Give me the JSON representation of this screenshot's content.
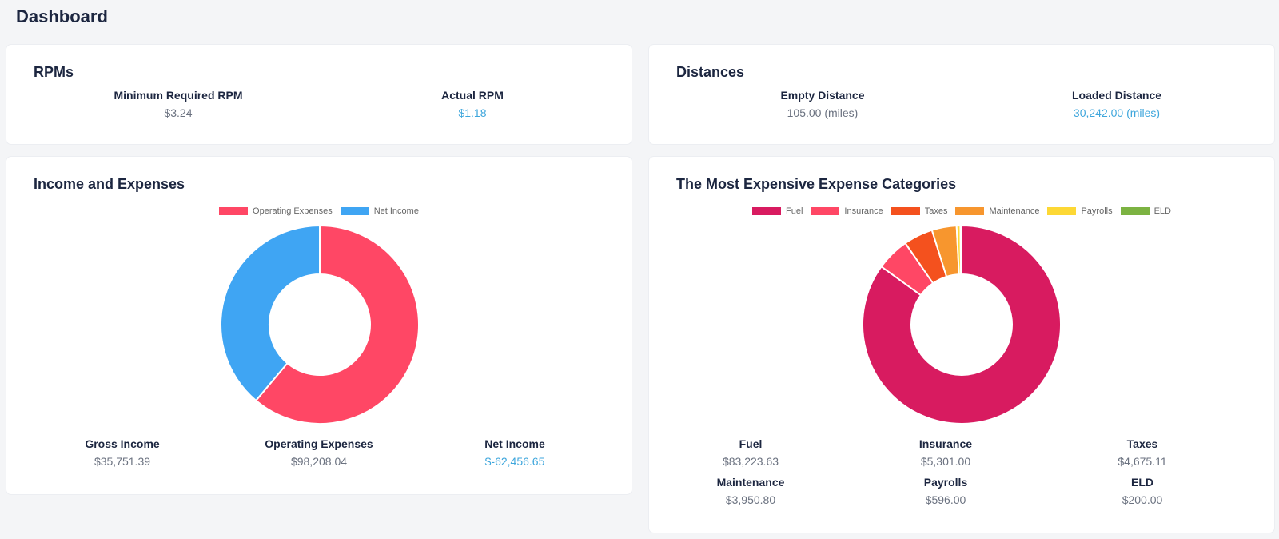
{
  "page": {
    "title": "Dashboard"
  },
  "rpms": {
    "title": "RPMs",
    "min_label": "Minimum Required RPM",
    "min_value": "$3.24",
    "actual_label": "Actual RPM",
    "actual_value": "$1.18"
  },
  "distances": {
    "title": "Distances",
    "empty_label": "Empty Distance",
    "empty_value": "105.00 (miles)",
    "loaded_label": "Loaded Distance",
    "loaded_value": "30,242.00 (miles)"
  },
  "income": {
    "title": "Income and Expenses",
    "legend": [
      {
        "label": "Operating Expenses",
        "color": "#ff4765"
      },
      {
        "label": "Net Income",
        "color": "#3fa5f3"
      }
    ],
    "stats": {
      "gross_label": "Gross Income",
      "gross_value": "$35,751.39",
      "opex_label": "Operating Expenses",
      "opex_value": "$98,208.04",
      "net_label": "Net Income",
      "net_value": "$-62,456.65"
    }
  },
  "expenses": {
    "title": "The Most Expensive Expense Categories",
    "legend": [
      {
        "label": "Fuel",
        "color": "#d81b60"
      },
      {
        "label": "Insurance",
        "color": "#ff4765"
      },
      {
        "label": "Taxes",
        "color": "#f4511e"
      },
      {
        "label": "Maintenance",
        "color": "#f7962e"
      },
      {
        "label": "Payrolls",
        "color": "#fdd835"
      },
      {
        "label": "ELD",
        "color": "#7cb342"
      }
    ],
    "stats": [
      {
        "label": "Fuel",
        "value": "$83,223.63"
      },
      {
        "label": "Insurance",
        "value": "$5,301.00"
      },
      {
        "label": "Taxes",
        "value": "$4,675.11"
      },
      {
        "label": "Maintenance",
        "value": "$3,950.80"
      },
      {
        "label": "Payrolls",
        "value": "$596.00"
      },
      {
        "label": "ELD",
        "value": "$200.00"
      }
    ]
  },
  "chart_data": [
    {
      "type": "pie",
      "categories": [
        "Operating Expenses",
        "Net Income"
      ],
      "values": [
        98208.04,
        62456.65
      ],
      "colors": [
        "#ff4765",
        "#3fa5f3"
      ],
      "legend": "top"
    },
    {
      "type": "pie",
      "categories": [
        "Fuel",
        "Insurance",
        "Taxes",
        "Maintenance",
        "Payrolls",
        "ELD"
      ],
      "values": [
        83223.63,
        5301.0,
        4675.11,
        3950.8,
        596.0,
        200.0
      ],
      "colors": [
        "#d81b60",
        "#ff4765",
        "#f4511e",
        "#f7962e",
        "#fdd835",
        "#7cb342"
      ],
      "legend": "top"
    }
  ]
}
